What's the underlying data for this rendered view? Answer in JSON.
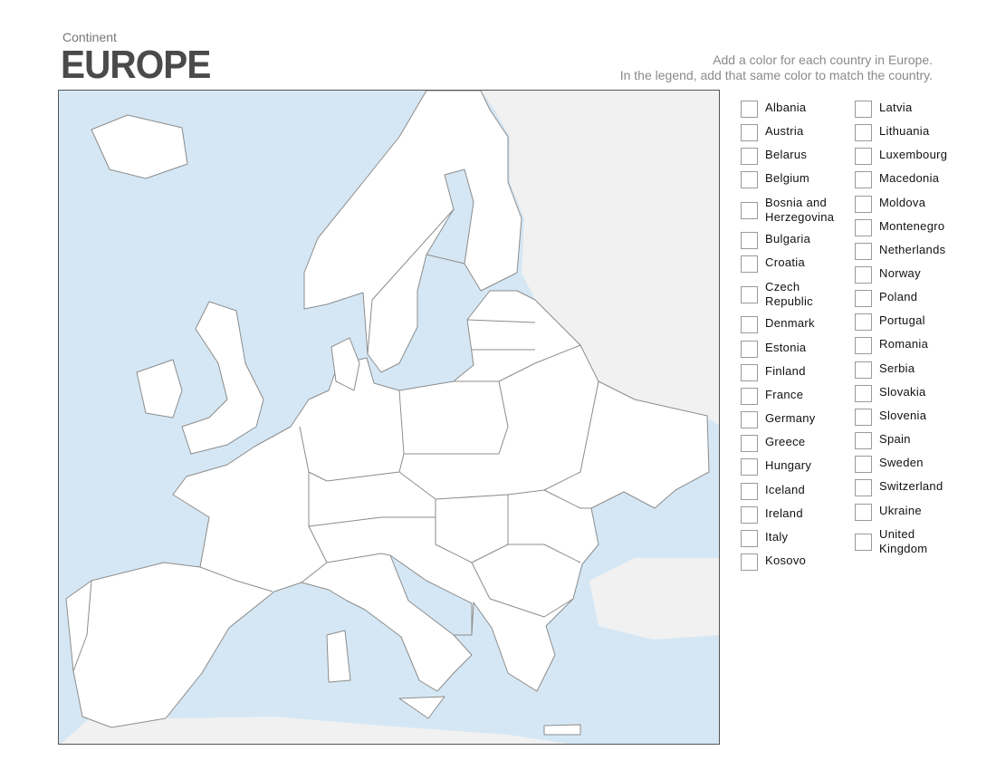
{
  "header": {
    "subtitle": "Continent",
    "title": "EUROPE",
    "instruction_line1": "Add a color for each country in Europe.",
    "instruction_line2": "In the legend, add that same color to match the country."
  },
  "map": {
    "colors": {
      "sea": "#d5e7f4",
      "europe_land": "#ffffff",
      "other_land": "#f1f1f1",
      "border": "#8c8c8c"
    }
  },
  "legend": {
    "column1": [
      "Albania",
      "Austria",
      "Belarus",
      "Belgium",
      "Bosnia and Herzegovina",
      "Bulgaria",
      "Croatia",
      "Czech Republic",
      "Denmark",
      "Estonia",
      "Finland",
      "France",
      "Germany",
      "Greece",
      "Hungary",
      "Iceland",
      "Ireland",
      "Italy",
      "Kosovo"
    ],
    "column2": [
      "Latvia",
      "Lithuania",
      "Luxembourg",
      "Macedonia",
      "Moldova",
      "Montenegro",
      "Netherlands",
      "Norway",
      "Poland",
      "Portugal",
      "Romania",
      "Serbia",
      "Slovakia",
      "Slovenia",
      "Spain",
      "Sweden",
      "Switzerland",
      "Ukraine",
      "United Kingdom"
    ]
  }
}
